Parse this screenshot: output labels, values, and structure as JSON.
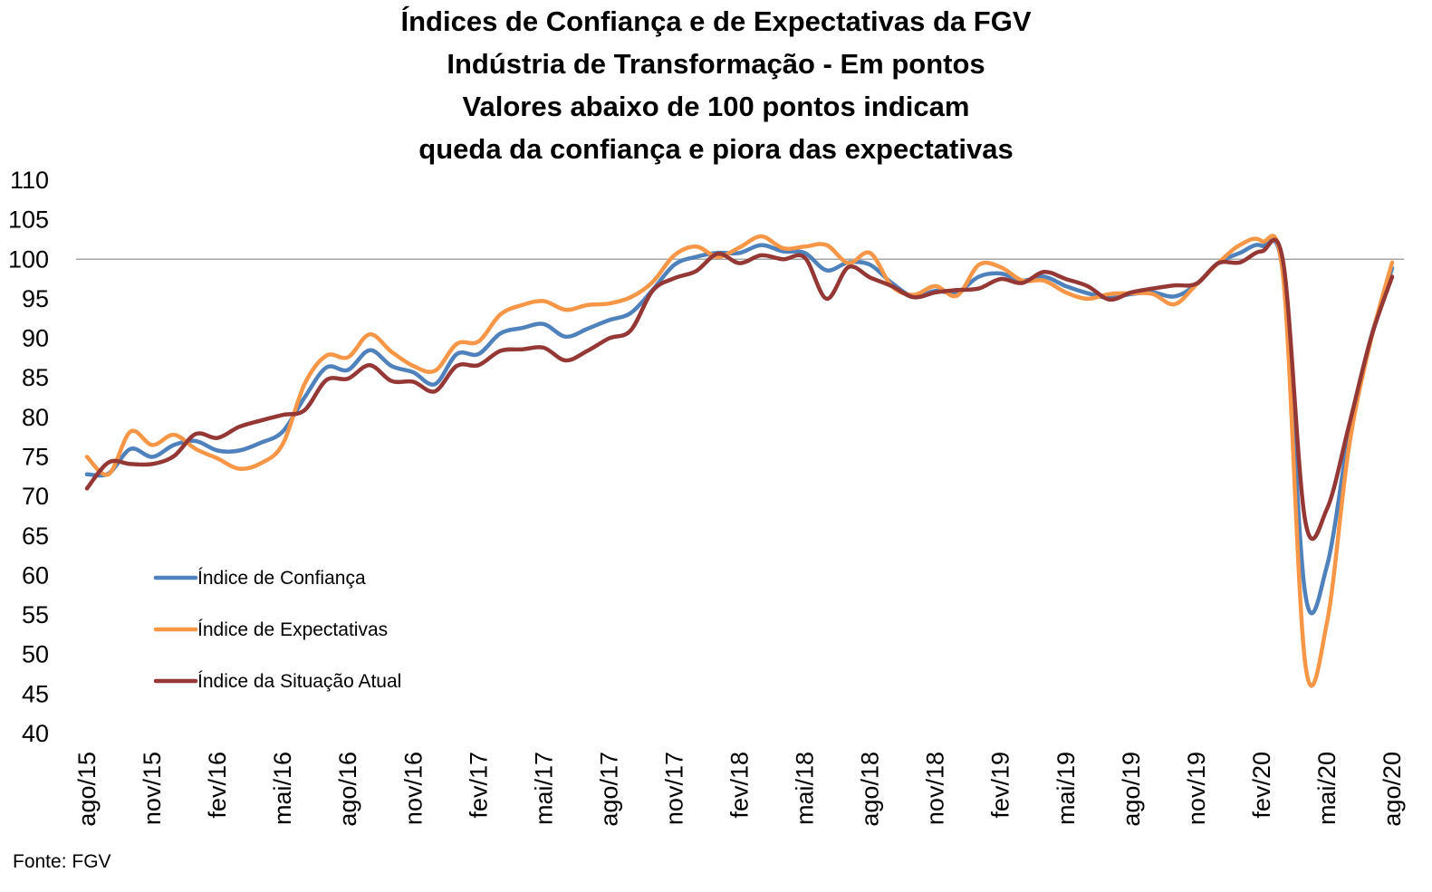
{
  "chart_data": {
    "type": "line",
    "title_lines": [
      "Índices de Confiança e de Expectativas da FGV",
      "Indústria de Transformação - Em pontos",
      "Valores abaixo de 100 pontos indicam",
      "queda da confiança e piora das expectativas"
    ],
    "ylim": [
      40,
      110
    ],
    "yticks": [
      "110",
      "105",
      "100",
      "95",
      "90",
      "85",
      "80",
      "75",
      "70",
      "65",
      "60",
      "55",
      "50",
      "45",
      "40"
    ],
    "reference_line": 100,
    "x_tick_labels": [
      "ago/15",
      "nov/15",
      "fev/16",
      "mai/16",
      "ago/16",
      "nov/16",
      "fev/17",
      "mai/17",
      "ago/17",
      "nov/17",
      "fev/18",
      "mai/18",
      "ago/18",
      "nov/18",
      "fev/19",
      "mai/19",
      "ago/19",
      "nov/19",
      "fev/20",
      "mai/20",
      "ago/20"
    ],
    "x": [
      "ago/15",
      "set/15",
      "out/15",
      "nov/15",
      "dez/15",
      "jan/16",
      "fev/16",
      "mar/16",
      "abr/16",
      "mai/16",
      "jun/16",
      "jul/16",
      "ago/16",
      "set/16",
      "out/16",
      "nov/16",
      "dez/16",
      "jan/17",
      "fev/17",
      "mar/17",
      "abr/17",
      "mai/17",
      "jun/17",
      "jul/17",
      "ago/17",
      "set/17",
      "out/17",
      "nov/17",
      "dez/17",
      "jan/18",
      "fev/18",
      "mar/18",
      "abr/18",
      "mai/18",
      "jun/18",
      "jul/18",
      "ago/18",
      "set/18",
      "out/18",
      "nov/18",
      "dez/18",
      "jan/19",
      "fev/19",
      "mar/19",
      "abr/19",
      "mai/19",
      "jun/19",
      "jul/19",
      "ago/19",
      "set/19",
      "out/19",
      "nov/19",
      "dez/19",
      "jan/20",
      "fev/20",
      "mar/20",
      "abr/20",
      "mai/20",
      "jun/20",
      "jul/20",
      "ago/20"
    ],
    "grid": false,
    "legend_position": "lower-left",
    "series": [
      {
        "name": "Índice de Confiança",
        "color": "#4f81bd",
        "values": [
          72.8,
          72.9,
          76.0,
          75.0,
          76.5,
          77.0,
          75.8,
          75.8,
          76.8,
          78.2,
          82.5,
          86.3,
          86.0,
          88.5,
          86.5,
          85.7,
          84.2,
          88.0,
          88.0,
          90.6,
          91.3,
          91.8,
          90.2,
          91.2,
          92.3,
          93.2,
          96.1,
          99.3,
          100.3,
          100.8,
          100.8,
          101.8,
          101.0,
          100.8,
          98.6,
          99.6,
          99.3,
          97.0,
          95.3,
          96.0,
          95.8,
          97.8,
          98.2,
          97.3,
          97.8,
          96.6,
          95.7,
          95.1,
          95.6,
          95.8,
          95.3,
          96.8,
          99.5,
          100.8,
          101.7,
          98.0,
          57.8,
          61.2,
          77.5,
          89.8,
          98.9
        ]
      },
      {
        "name": "Índice de Expectativas",
        "color": "#f79646",
        "values": [
          75.0,
          72.8,
          78.2,
          76.5,
          77.8,
          76.0,
          74.8,
          73.5,
          74.2,
          76.6,
          84.2,
          87.8,
          87.6,
          90.5,
          88.3,
          86.5,
          85.9,
          89.3,
          89.6,
          93.0,
          94.2,
          94.7,
          93.6,
          94.2,
          94.4,
          95.2,
          97.1,
          100.5,
          101.6,
          100.3,
          101.5,
          102.9,
          101.4,
          101.6,
          101.8,
          99.5,
          100.8,
          96.6,
          95.5,
          96.6,
          95.4,
          99.3,
          99.0,
          97.3,
          97.3,
          95.8,
          95.0,
          95.6,
          95.7,
          95.6,
          94.3,
          96.8,
          99.5,
          101.8,
          102.3,
          97.5,
          49.0,
          54.0,
          76.0,
          89.5,
          99.6
        ]
      },
      {
        "name": "Índice da Situação Atual",
        "color": "#953735",
        "values": [
          71.0,
          74.3,
          74.1,
          74.1,
          75.1,
          77.9,
          77.4,
          78.8,
          79.6,
          80.3,
          80.9,
          84.7,
          84.9,
          86.6,
          84.6,
          84.5,
          83.3,
          86.5,
          86.6,
          88.4,
          88.6,
          88.8,
          87.2,
          88.4,
          90.0,
          91.0,
          96.0,
          97.6,
          98.5,
          100.7,
          99.5,
          100.5,
          100.0,
          100.2,
          95.0,
          99.0,
          97.7,
          96.6,
          95.2,
          95.8,
          96.1,
          96.3,
          97.5,
          97.0,
          98.4,
          97.5,
          96.6,
          94.9,
          95.8,
          96.3,
          96.7,
          96.9,
          99.5,
          99.6,
          101.0,
          99.5,
          67.0,
          68.4,
          78.8,
          89.8,
          97.8
        ]
      }
    ]
  },
  "source": "Fonte: FGV"
}
